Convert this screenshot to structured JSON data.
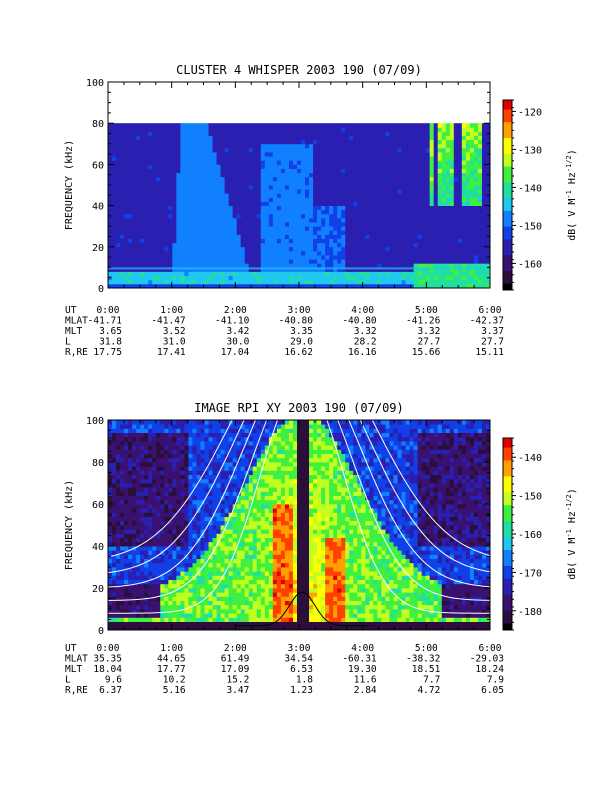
{
  "colors": {
    "colormap": [
      "#000000",
      "#2b0f3a",
      "#3a1070",
      "#2a1fb0",
      "#1040e8",
      "#1080ff",
      "#20c8f0",
      "#20e0a0",
      "#40f040",
      "#c0ff20",
      "#ffff00",
      "#ffa000",
      "#ff4000",
      "#e00000"
    ]
  },
  "chart_data": [
    {
      "type": "heatmap",
      "title": "CLUSTER 4 WHISPER 2003 190 (07/09)",
      "ylabel": "FREQUENCY (kHz)",
      "xlabel": "",
      "ylim": [
        0,
        100
      ],
      "data_ylim": [
        0,
        80
      ],
      "xlim": [
        "0:00",
        "6:00"
      ],
      "yticks": [
        0,
        20,
        40,
        60,
        80,
        100
      ],
      "colorbar": {
        "label_parts": [
          "dB( V M",
          "-1",
          " Hz",
          "-1/2",
          ")"
        ],
        "ticks": [
          -120,
          -130,
          -140,
          -150,
          -160
        ],
        "range": [
          -167,
          -117
        ]
      },
      "ephemeris_labels": [
        "UT",
        "MLAT",
        "MLT",
        "L",
        "R,RE"
      ],
      "ephemeris": [
        [
          "0:00",
          "-41.71",
          "3.65",
          "31.8",
          "17.75"
        ],
        [
          "1:00",
          "-41.47",
          "3.52",
          "31.0",
          "17.41"
        ],
        [
          "2:00",
          "-41.10",
          "3.42",
          "30.0",
          "17.04"
        ],
        [
          "3:00",
          "-40.80",
          "3.35",
          "29.0",
          "16.62"
        ],
        [
          "4:00",
          "-40.80",
          "3.32",
          "28.2",
          "16.16"
        ],
        [
          "5:00",
          "-41.26",
          "3.32",
          "27.7",
          "15.66"
        ],
        [
          "6:00",
          "-42.37",
          "3.37",
          "27.7",
          "15.11"
        ]
      ]
    },
    {
      "type": "heatmap",
      "title": "IMAGE RPI XY 2003 190 (07/09)",
      "ylabel": "FREQUENCY (kHz)",
      "xlabel": "",
      "ylim": [
        0,
        100
      ],
      "data_ylim": [
        0,
        100
      ],
      "xlim": [
        "0:00",
        "6:00"
      ],
      "yticks": [
        0,
        20,
        40,
        60,
        80,
        100
      ],
      "colorbar": {
        "label_parts": [
          "dB( V M",
          "-1",
          " Hz",
          "-1/2",
          ")"
        ],
        "ticks": [
          -140,
          -150,
          -160,
          -170,
          -180
        ],
        "range": [
          -185,
          -135
        ]
      },
      "ephemeris_labels": [
        "UT",
        "MLAT",
        "MLT",
        "L",
        "R,RE"
      ],
      "ephemeris": [
        [
          "0:00",
          "35.35",
          "18.04",
          "9.6",
          "6.37"
        ],
        [
          "1:00",
          "44.65",
          "17.77",
          "10.2",
          "5.16"
        ],
        [
          "2:00",
          "61.49",
          "17.09",
          "15.2",
          "3.47"
        ],
        [
          "3:00",
          "34.54",
          "6.53",
          "1.8",
          "1.23"
        ],
        [
          "4:00",
          "-60.31",
          "19.30",
          "11.6",
          "2.84"
        ],
        [
          "5:00",
          "-38.32",
          "18.51",
          "7.7",
          "4.72"
        ],
        [
          "6:00",
          "-29.03",
          "18.24",
          "7.9",
          "6.05"
        ]
      ]
    }
  ]
}
